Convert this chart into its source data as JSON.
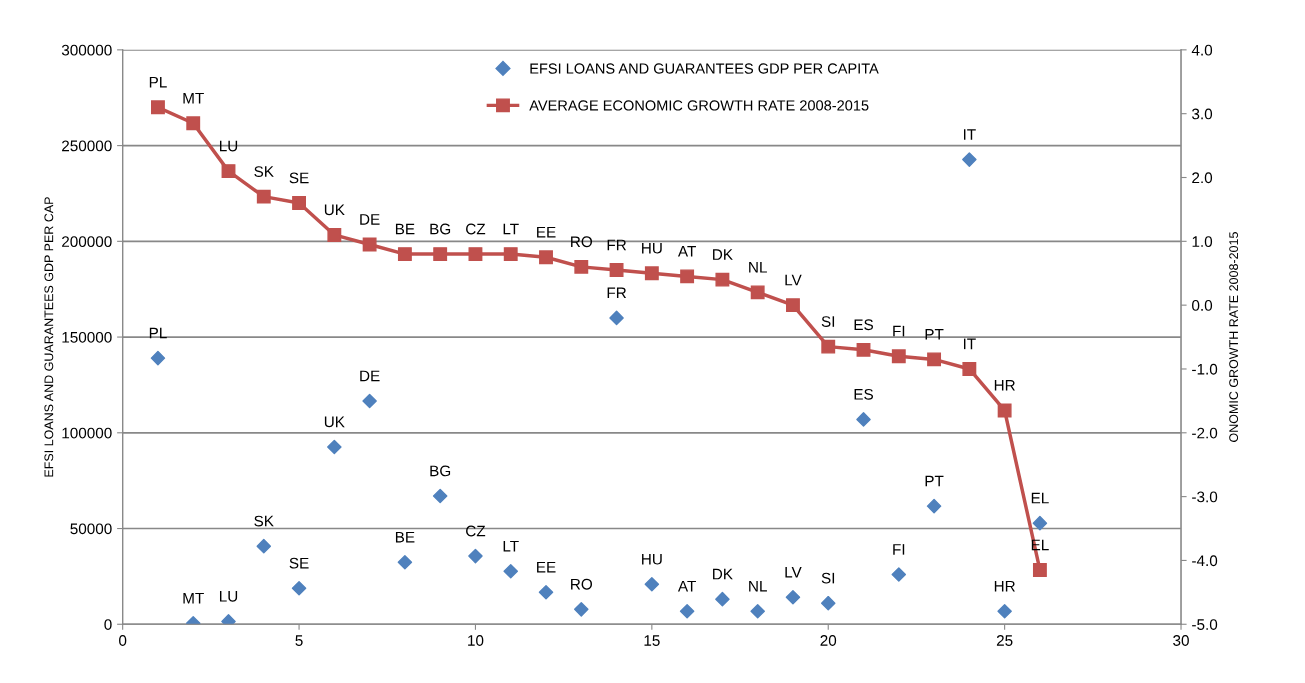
{
  "chart_data": {
    "type": "scatter",
    "xlabel": null,
    "ylabel": "EFSI LOANS AND GUARANTEES GDP PER CAP",
    "y2label": "ONOMIC GROWTH RATE 2008-2015",
    "xlim": [
      0,
      30
    ],
    "xticks": [
      0,
      5,
      10,
      15,
      20,
      25,
      30
    ],
    "ylim": [
      0,
      300000
    ],
    "yticks": [
      0,
      50000,
      100000,
      150000,
      200000,
      250000,
      300000
    ],
    "y2lim": [
      -5,
      4
    ],
    "y2ticks": [
      {
        "value": -5,
        "label": "-5.0"
      },
      {
        "value": -4,
        "label": "-4.0"
      },
      {
        "value": -3,
        "label": "-3.0"
      },
      {
        "value": -2,
        "label": "-2.0"
      },
      {
        "value": -1,
        "label": "-1.0"
      },
      {
        "value": 0,
        "label": "0.0"
      },
      {
        "value": 1,
        "label": "1.0"
      },
      {
        "value": 2,
        "label": "2.0"
      },
      {
        "value": 3,
        "label": "3.0"
      },
      {
        "value": 4,
        "label": "4.0"
      }
    ],
    "grid": "y",
    "legend": "top",
    "x": [
      1,
      2,
      3,
      4,
      5,
      6,
      7,
      8,
      9,
      10,
      11,
      12,
      13,
      14,
      15,
      16,
      17,
      18,
      19,
      20,
      21,
      22,
      23,
      24,
      25,
      26
    ],
    "series": [
      {
        "name": "EFSI LOANS AND GUARANTEES GDP PER CAPITA",
        "marker": "diamond",
        "color": "#4f81bd",
        "values": [
          139000,
          500,
          1500,
          40800,
          18800,
          92600,
          116600,
          32400,
          67000,
          35600,
          27700,
          16700,
          7800,
          160000,
          20900,
          6800,
          13100,
          6800,
          14100,
          11000,
          107000,
          26000,
          61700,
          242700,
          6800,
          52800
        ]
      },
      {
        "name": "AVERAGE ECONOMIC GROWTH RATE 2008-2015",
        "type": "line",
        "axis": "y2",
        "marker": "square",
        "line_style": "solid",
        "color": "#c0504d",
        "values": [
          3.1,
          2.85,
          2.1,
          1.7,
          1.6,
          1.1,
          0.95,
          0.8,
          0.8,
          0.8,
          0.8,
          0.75,
          0.6,
          0.55,
          0.5,
          0.45,
          0.4,
          0.2,
          0.0,
          -0.65,
          -0.7,
          -0.8,
          -0.85,
          -1.0,
          -1.65,
          -4.15
        ]
      }
    ],
    "annotations": [
      {
        "text": "PL",
        "x": 1,
        "y": 139000
      },
      {
        "text": "MT",
        "x": 2,
        "y": 500
      },
      {
        "text": "LU",
        "x": 3,
        "y": 1500
      },
      {
        "text": "SK",
        "x": 4,
        "y": 40800
      },
      {
        "text": "SE",
        "x": 5,
        "y": 18800
      },
      {
        "text": "UK",
        "x": 6,
        "y": 92600
      },
      {
        "text": "DE",
        "x": 7,
        "y": 116600
      },
      {
        "text": "BE",
        "x": 8,
        "y": 32400
      },
      {
        "text": "BG",
        "x": 9,
        "y": 67000
      },
      {
        "text": "CZ",
        "x": 10,
        "y": 35600
      },
      {
        "text": "LT",
        "x": 11,
        "y": 27700
      },
      {
        "text": "EE",
        "x": 12,
        "y": 16700
      },
      {
        "text": "RO",
        "x": 13,
        "y": 7800
      },
      {
        "text": "FR",
        "x": 14,
        "y": 160000
      },
      {
        "text": "HU",
        "x": 15,
        "y": 20900
      },
      {
        "text": "AT",
        "x": 16,
        "y": 6800
      },
      {
        "text": "DK",
        "x": 17,
        "y": 13100
      },
      {
        "text": "NL",
        "x": 18,
        "y": 6800
      },
      {
        "text": "LV",
        "x": 19,
        "y": 14100
      },
      {
        "text": "SI",
        "x": 20,
        "y": 11000
      },
      {
        "text": "ES",
        "x": 21,
        "y": 107000
      },
      {
        "text": "FI",
        "x": 22,
        "y": 26000
      },
      {
        "text": "PT",
        "x": 23,
        "y": 61700
      },
      {
        "text": "IT",
        "x": 24,
        "y": 242700
      },
      {
        "text": "HR",
        "x": 25,
        "y": 6800
      },
      {
        "text": "EL",
        "x": 26,
        "y": 52800
      },
      "PL",
      "MT",
      "LU",
      "SK",
      "SE",
      "UK",
      "DE",
      "BE",
      "BG",
      "CZ",
      "LT",
      "EE",
      "RO",
      "FR",
      "HU",
      "AT",
      "DK",
      "NL",
      "LV",
      "SI",
      "ES",
      "FI",
      "PT",
      "IT",
      "HR",
      "EL"
    ]
  }
}
